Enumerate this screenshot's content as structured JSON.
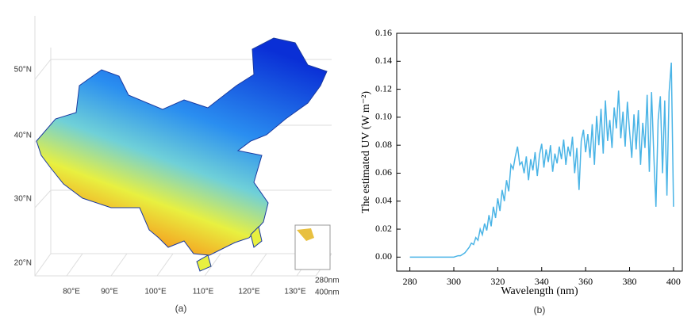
{
  "chart_data": [
    {
      "type": "map",
      "lat_labels": [
        "50°N",
        "40°N",
        "30°N",
        "20°N"
      ],
      "lon_labels": [
        "80°E",
        "90°E",
        "100°E",
        "110°E",
        "120°E",
        "130°E"
      ],
      "depth_labels": [
        "280nm",
        "400nm"
      ],
      "caption": "(a)"
    },
    {
      "type": "line",
      "xlabel": "Wavelength (nm)",
      "ylabel": "The estimated UV (W m⁻²)",
      "caption": "(b)",
      "color": "#4ab4e6",
      "xlim": [
        274,
        404
      ],
      "ylim": [
        -0.01,
        0.16
      ],
      "xticks": [
        280,
        300,
        320,
        340,
        360,
        380,
        400
      ],
      "yticks": [
        {
          "value": 0,
          "label": "0.00"
        },
        {
          "value": 0.02,
          "label": "0.02"
        },
        {
          "value": 0.04,
          "label": "0.04"
        },
        {
          "value": 0.06,
          "label": "0.06"
        },
        {
          "value": 0.08,
          "label": "0.08"
        },
        {
          "value": 0.1,
          "label": "0.10"
        },
        {
          "value": 0.12,
          "label": "0.12"
        },
        {
          "value": 0.14,
          "label": "0.14"
        },
        {
          "value": 0.16,
          "label": "0.16"
        }
      ],
      "x": [
        280,
        281,
        282,
        283,
        284,
        285,
        286,
        287,
        288,
        289,
        290,
        291,
        292,
        293,
        294,
        295,
        296,
        297,
        298,
        299,
        300,
        301,
        302,
        303,
        304,
        305,
        306,
        307,
        308,
        309,
        310,
        311,
        312,
        313,
        314,
        315,
        316,
        317,
        318,
        319,
        320,
        321,
        322,
        323,
        324,
        325,
        326,
        327,
        328,
        329,
        330,
        331,
        332,
        333,
        334,
        335,
        336,
        337,
        338,
        339,
        340,
        341,
        342,
        343,
        344,
        345,
        346,
        347,
        348,
        349,
        350,
        351,
        352,
        353,
        354,
        355,
        356,
        357,
        358,
        359,
        360,
        361,
        362,
        363,
        364,
        365,
        366,
        367,
        368,
        369,
        370,
        371,
        372,
        373,
        374,
        375,
        376,
        377,
        378,
        379,
        380,
        381,
        382,
        383,
        384,
        385,
        386,
        387,
        388,
        389,
        390,
        391,
        392,
        393,
        394,
        395,
        396,
        397,
        398,
        399,
        400
      ],
      "values": [
        0,
        0,
        0,
        0,
        0,
        0,
        0,
        0,
        0,
        0,
        0,
        0,
        0,
        0,
        0,
        0,
        0,
        0,
        0,
        0,
        0,
        0.0005,
        0.001,
        0.001,
        0.002,
        0.003,
        0.005,
        0.007,
        0.01,
        0.009,
        0.014,
        0.012,
        0.02,
        0.016,
        0.024,
        0.019,
        0.03,
        0.022,
        0.036,
        0.028,
        0.042,
        0.033,
        0.048,
        0.04,
        0.055,
        0.047,
        0.066,
        0.063,
        0.072,
        0.079,
        0.066,
        0.068,
        0.06,
        0.072,
        0.055,
        0.07,
        0.062,
        0.075,
        0.058,
        0.073,
        0.081,
        0.064,
        0.077,
        0.068,
        0.08,
        0.061,
        0.074,
        0.067,
        0.079,
        0.07,
        0.084,
        0.066,
        0.079,
        0.072,
        0.086,
        0.06,
        0.078,
        0.048,
        0.083,
        0.091,
        0.075,
        0.088,
        0.071,
        0.095,
        0.066,
        0.101,
        0.08,
        0.106,
        0.074,
        0.112,
        0.083,
        0.098,
        0.078,
        0.107,
        0.092,
        0.119,
        0.085,
        0.104,
        0.079,
        0.111,
        0.09,
        0.071,
        0.102,
        0.077,
        0.105,
        0.066,
        0.096,
        0.078,
        0.116,
        0.061,
        0.118,
        0.074,
        0.036,
        0.098,
        0.115,
        0.06,
        0.112,
        0.044,
        0.118,
        0.139,
        0.036
      ]
    }
  ]
}
